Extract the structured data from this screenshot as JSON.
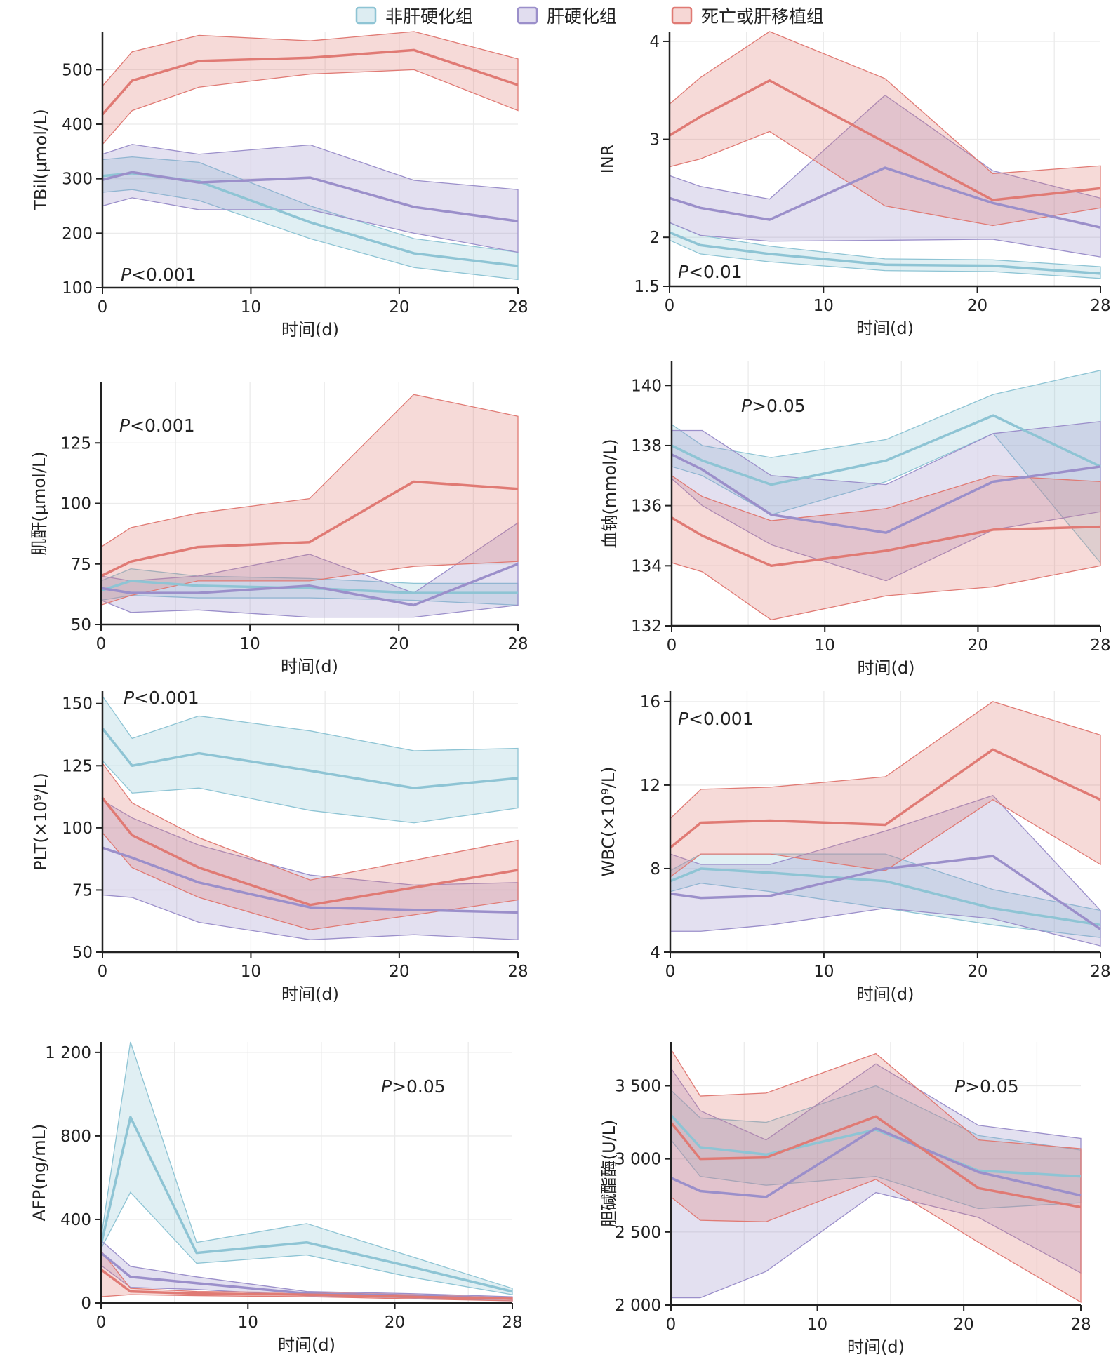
{
  "legend": {
    "items": [
      {
        "label": "非肝硬化组",
        "color": "#8ec4d4"
      },
      {
        "label": "肝硬化组",
        "color": "#9b8fca"
      },
      {
        "label": "死亡或肝移植组",
        "color": "#e07a74"
      }
    ],
    "position": "top-center"
  },
  "colors": {
    "non_cirrhosis": "#8ec4d4",
    "cirrhosis": "#9b8fca",
    "death_transplant": "#e07a74"
  },
  "chart_data": [
    {
      "type": "line",
      "xlabel": "时间(d)",
      "ylabel": "TBil(μmol/L)",
      "p_value": "P<0.001",
      "xlim": [
        0,
        28
      ],
      "ylim": [
        100,
        570
      ],
      "xticks": [
        0,
        10,
        20,
        28
      ],
      "yticks": [
        100,
        200,
        300,
        400,
        500
      ],
      "grid": true,
      "x": [
        0,
        2,
        6.5,
        14,
        21,
        28
      ],
      "series": [
        {
          "name": "非肝硬化组",
          "values": [
            305,
            310,
            295,
            220,
            163,
            140
          ],
          "lower": [
            275,
            280,
            260,
            190,
            137,
            115
          ],
          "upper": [
            335,
            340,
            330,
            250,
            190,
            165
          ]
        },
        {
          "name": "肝硬化组",
          "values": [
            298,
            312,
            293,
            302,
            248,
            222
          ],
          "lower": [
            250,
            265,
            243,
            243,
            200,
            165
          ],
          "upper": [
            345,
            363,
            345,
            362,
            297,
            280
          ]
        },
        {
          "name": "死亡或肝移植组",
          "values": [
            418,
            480,
            516,
            522,
            536,
            472
          ],
          "lower": [
            363,
            425,
            468,
            492,
            500,
            425
          ],
          "upper": [
            470,
            533,
            563,
            553,
            570,
            520
          ]
        }
      ]
    },
    {
      "type": "line",
      "xlabel": "时间(d)",
      "ylabel": "INR",
      "p_value": "P<0.01",
      "xlim": [
        0,
        28
      ],
      "ylim": [
        1.5,
        4.1
      ],
      "xticks": [
        0,
        10,
        20,
        28
      ],
      "yticks": [
        1.5,
        2,
        3,
        4
      ],
      "grid": true,
      "x": [
        0,
        2,
        6.5,
        14,
        21,
        28
      ],
      "series": [
        {
          "name": "非肝硬化组",
          "values": [
            2.05,
            1.92,
            1.83,
            1.72,
            1.71,
            1.63
          ],
          "lower": [
            1.97,
            1.83,
            1.75,
            1.66,
            1.65,
            1.58
          ],
          "upper": [
            2.15,
            2.02,
            1.91,
            1.78,
            1.77,
            1.7
          ]
        },
        {
          "name": "肝硬化组",
          "values": [
            2.4,
            2.3,
            2.18,
            2.71,
            2.35,
            2.1
          ],
          "lower": [
            2.15,
            2.02,
            1.96,
            1.97,
            1.98,
            1.8
          ],
          "upper": [
            2.63,
            2.52,
            2.39,
            3.45,
            2.68,
            2.4
          ]
        },
        {
          "name": "死亡或肝移植组",
          "values": [
            3.04,
            3.23,
            3.6,
            2.97,
            2.38,
            2.5
          ],
          "lower": [
            2.72,
            2.8,
            3.08,
            2.32,
            2.12,
            2.3
          ],
          "upper": [
            3.36,
            3.63,
            4.1,
            3.62,
            2.65,
            2.73
          ]
        }
      ]
    },
    {
      "type": "line",
      "xlabel": "时间(d)",
      "ylabel": "肌酐(μmol/L)",
      "p_value": "P<0.001",
      "xlim": [
        0,
        28
      ],
      "ylim": [
        50,
        150
      ],
      "xticks": [
        0,
        10,
        20,
        28
      ],
      "yticks": [
        50,
        75,
        100,
        125
      ],
      "grid": true,
      "x": [
        0,
        2,
        6.5,
        14,
        21,
        28
      ],
      "series": [
        {
          "name": "非肝硬化组",
          "values": [
            64,
            68,
            66,
            65,
            63,
            63
          ],
          "lower": [
            60,
            62,
            61,
            61,
            60,
            58
          ],
          "upper": [
            68,
            73,
            70,
            69,
            67,
            67
          ]
        },
        {
          "name": "肝硬化组",
          "values": [
            65,
            63,
            63,
            66,
            58,
            75
          ],
          "lower": [
            60,
            55,
            56,
            53,
            53,
            58
          ],
          "upper": [
            70,
            68,
            70,
            79,
            63,
            92
          ]
        },
        {
          "name": "死亡或肝移植组",
          "values": [
            70,
            76,
            82,
            84,
            109,
            106
          ],
          "lower": [
            58,
            62,
            68,
            68,
            74,
            76
          ],
          "upper": [
            82,
            90,
            96,
            102,
            145,
            136
          ]
        }
      ]
    },
    {
      "type": "line",
      "xlabel": "时间(d)",
      "ylabel": "血钠(mmol/L)",
      "p_value": "P>0.05",
      "xlim": [
        0,
        28
      ],
      "ylim": [
        132,
        140.8
      ],
      "xticks": [
        0,
        10,
        20,
        28
      ],
      "yticks": [
        132,
        134,
        136,
        138,
        140
      ],
      "grid": true,
      "x": [
        0,
        2,
        6.5,
        14,
        21,
        28
      ],
      "series": [
        {
          "name": "非肝硬化组",
          "values": [
            138.0,
            137.5,
            136.7,
            137.5,
            139.0,
            137.3
          ],
          "lower": [
            137.3,
            137.0,
            135.7,
            136.8,
            138.4,
            134.1
          ],
          "upper": [
            138.7,
            138.0,
            137.6,
            138.2,
            139.7,
            140.5
          ]
        },
        {
          "name": "肝硬化组",
          "values": [
            137.7,
            137.2,
            135.7,
            135.1,
            136.8,
            137.3
          ],
          "lower": [
            136.9,
            136.0,
            134.7,
            133.5,
            135.2,
            135.8
          ],
          "upper": [
            138.5,
            138.5,
            137.0,
            136.7,
            138.4,
            138.8
          ]
        },
        {
          "name": "死亡或肝移植组",
          "values": [
            135.6,
            135.0,
            134.0,
            134.5,
            135.2,
            135.3
          ],
          "lower": [
            134.1,
            133.8,
            132.2,
            133.0,
            133.3,
            134.0
          ],
          "upper": [
            137.0,
            136.3,
            135.5,
            135.9,
            137.0,
            136.8
          ]
        }
      ]
    },
    {
      "type": "line",
      "xlabel": "时间(d)",
      "ylabel": "PLT(×10⁹/L)",
      "p_value": "P<0.001",
      "xlim": [
        0,
        28
      ],
      "ylim": [
        50,
        155
      ],
      "xticks": [
        0,
        10,
        20,
        28
      ],
      "yticks": [
        50,
        75,
        100,
        125,
        150
      ],
      "grid": true,
      "x": [
        0,
        2,
        6.5,
        14,
        21,
        28
      ],
      "series": [
        {
          "name": "非肝硬化组",
          "values": [
            140,
            125,
            130,
            123,
            116,
            120
          ],
          "lower": [
            127,
            114,
            116,
            107,
            102,
            108
          ],
          "upper": [
            153,
            136,
            145,
            139,
            131,
            132
          ]
        },
        {
          "name": "肝硬化组",
          "values": [
            92,
            88,
            78,
            68,
            67,
            66
          ],
          "lower": [
            73,
            72,
            62,
            55,
            57,
            55
          ],
          "upper": [
            111,
            104,
            93,
            81,
            77,
            78
          ]
        },
        {
          "name": "死亡或肝移植组",
          "values": [
            112,
            97,
            84,
            69,
            76,
            83
          ],
          "lower": [
            98,
            84,
            72,
            59,
            65,
            71
          ],
          "upper": [
            126,
            110,
            96,
            79,
            87,
            95
          ]
        }
      ]
    },
    {
      "type": "line",
      "xlabel": "时间(d)",
      "ylabel": "WBC(×10⁹/L)",
      "p_value": "P<0.001",
      "xlim": [
        0,
        28
      ],
      "ylim": [
        4,
        16.5
      ],
      "xticks": [
        0,
        10,
        20,
        28
      ],
      "yticks": [
        4,
        8,
        12,
        16
      ],
      "grid": true,
      "x": [
        0,
        2,
        6.5,
        14,
        21,
        28
      ],
      "series": [
        {
          "name": "非肝硬化组",
          "values": [
            7.4,
            8.0,
            7.8,
            7.4,
            6.1,
            5.3
          ],
          "lower": [
            6.9,
            7.3,
            6.9,
            6.1,
            5.3,
            4.7
          ],
          "upper": [
            7.9,
            8.7,
            8.7,
            8.7,
            7.0,
            6.0
          ]
        },
        {
          "name": "肝硬化组",
          "values": [
            6.8,
            6.6,
            6.7,
            8.0,
            8.6,
            5.1
          ],
          "lower": [
            5.0,
            5.0,
            5.3,
            6.1,
            5.6,
            4.3
          ],
          "upper": [
            8.7,
            8.2,
            8.2,
            9.8,
            11.5,
            6.0
          ]
        },
        {
          "name": "死亡或肝移植组",
          "values": [
            9.0,
            10.2,
            10.3,
            10.1,
            13.7,
            11.3
          ],
          "lower": [
            7.6,
            8.7,
            8.7,
            7.9,
            11.3,
            8.2
          ],
          "upper": [
            10.4,
            11.8,
            11.9,
            12.4,
            16.0,
            14.4
          ]
        }
      ]
    },
    {
      "type": "line",
      "xlabel": "时间(d)",
      "ylabel": "AFP(ng/mL)",
      "p_value": "P>0.05",
      "xlim": [
        0,
        28
      ],
      "ylim": [
        0,
        1250
      ],
      "xticks": [
        0,
        10,
        20,
        28
      ],
      "yticks": [
        0,
        400,
        800,
        1200
      ],
      "ytick_labels": [
        "0",
        "400",
        "800",
        "1 200"
      ],
      "grid": true,
      "x": [
        0,
        2,
        6.5,
        14,
        21,
        28
      ],
      "series": [
        {
          "name": "非肝硬化组",
          "values": [
            280,
            890,
            240,
            290,
            175,
            55
          ],
          "lower": [
            260,
            530,
            190,
            230,
            125,
            40
          ],
          "upper": [
            310,
            1250,
            290,
            380,
            225,
            70
          ]
        },
        {
          "name": "肝硬化组",
          "values": [
            240,
            125,
            95,
            45,
            35,
            20
          ],
          "lower": [
            180,
            75,
            65,
            35,
            25,
            10
          ],
          "upper": [
            300,
            175,
            125,
            55,
            45,
            30
          ]
        },
        {
          "name": "死亡或肝移植组",
          "values": [
            160,
            55,
            45,
            40,
            30,
            20
          ],
          "lower": [
            30,
            40,
            35,
            30,
            20,
            10
          ],
          "upper": [
            250,
            70,
            55,
            50,
            40,
            25
          ]
        }
      ]
    },
    {
      "type": "line",
      "xlabel": "时间(d)",
      "ylabel": "胆碱酯酶(U/L)",
      "p_value": "P>0.05",
      "xlim": [
        0,
        28
      ],
      "ylim": [
        2000,
        3800
      ],
      "xticks": [
        0,
        10,
        20,
        28
      ],
      "yticks": [
        2000,
        2500,
        3000,
        3500
      ],
      "ytick_labels": [
        "2 000",
        "2 500",
        "3 000",
        "3 500"
      ],
      "grid": true,
      "x": [
        0,
        2,
        6.5,
        14,
        21,
        28
      ],
      "series": [
        {
          "name": "非肝硬化组",
          "values": [
            3300,
            3080,
            3030,
            3200,
            2920,
            2880
          ],
          "lower": [
            3130,
            2880,
            2820,
            2880,
            2660,
            2700
          ],
          "upper": [
            3470,
            3280,
            3250,
            3500,
            3160,
            3060
          ]
        },
        {
          "name": "肝硬化组",
          "values": [
            2870,
            2780,
            2740,
            3210,
            2910,
            2750
          ],
          "lower": [
            2050,
            2050,
            2230,
            2770,
            2600,
            2220
          ],
          "upper": [
            3620,
            3330,
            3130,
            3650,
            3230,
            3140
          ]
        },
        {
          "name": "死亡或肝移植组",
          "values": [
            3250,
            3000,
            3010,
            3290,
            2800,
            2670
          ],
          "lower": [
            2740,
            2580,
            2570,
            2860,
            2430,
            2020
          ],
          "upper": [
            3750,
            3430,
            3450,
            3720,
            3130,
            3070
          ]
        }
      ]
    }
  ]
}
